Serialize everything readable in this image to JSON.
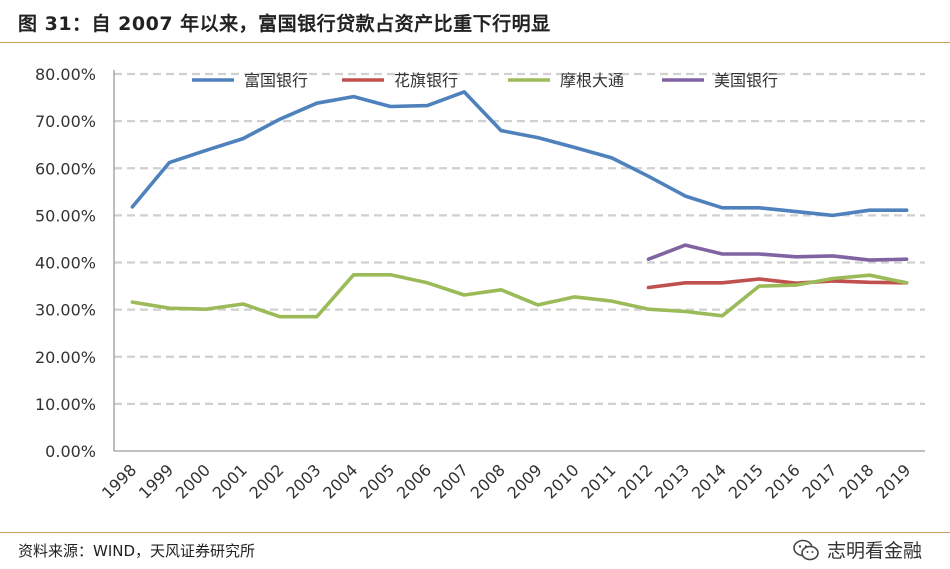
{
  "header": {
    "title": "图 31：自 2007 年以来，富国银行贷款占资产比重下行明显"
  },
  "footer": {
    "source": "资料来源：WIND，天风证券研究所",
    "watermark_text": "志明看金融",
    "watermark_icon": "wechat-icon"
  },
  "chart_data": {
    "type": "line",
    "title": "",
    "xlabel": "",
    "ylabel": "",
    "ylim": [
      0,
      0.8
    ],
    "y_ticks": [
      "0.00%",
      "10.00%",
      "20.00%",
      "30.00%",
      "40.00%",
      "50.00%",
      "60.00%",
      "70.00%",
      "80.00%"
    ],
    "grid": "horizontal dashed",
    "legend_position": "top",
    "categories": [
      "1998",
      "1999",
      "2000",
      "2001",
      "2002",
      "2003",
      "2004",
      "2005",
      "2006",
      "2007",
      "2008",
      "2009",
      "2010",
      "2011",
      "2012",
      "2013",
      "2014",
      "2015",
      "2016",
      "2017",
      "2018",
      "2019"
    ],
    "series": [
      {
        "name": "富国银行",
        "color": "#4f81bd",
        "values": [
          0.518,
          0.612,
          0.638,
          0.663,
          0.704,
          0.738,
          0.752,
          0.731,
          0.733,
          0.762,
          0.68,
          0.665,
          0.644,
          0.622,
          0.583,
          0.541,
          0.516,
          0.516,
          0.508,
          0.5,
          0.511,
          0.511
        ]
      },
      {
        "name": "花旗银行",
        "color": "#c0504d",
        "values": [
          null,
          null,
          null,
          null,
          null,
          null,
          null,
          null,
          null,
          null,
          null,
          null,
          null,
          null,
          0.347,
          0.357,
          0.357,
          0.365,
          0.356,
          0.361,
          0.358,
          0.357
        ]
      },
      {
        "name": "摩根大通",
        "color": "#9bbb59",
        "values": [
          0.316,
          0.303,
          0.301,
          0.312,
          0.285,
          0.285,
          0.374,
          0.374,
          0.357,
          0.331,
          0.342,
          0.31,
          0.327,
          0.318,
          0.301,
          0.296,
          0.287,
          0.35,
          0.352,
          0.366,
          0.373,
          0.357
        ]
      },
      {
        "name": "美国银行",
        "color": "#8064a2",
        "values": [
          null,
          null,
          null,
          null,
          null,
          null,
          null,
          null,
          null,
          null,
          null,
          null,
          null,
          null,
          0.407,
          0.437,
          0.418,
          0.418,
          0.412,
          0.414,
          0.405,
          0.407
        ]
      }
    ]
  }
}
